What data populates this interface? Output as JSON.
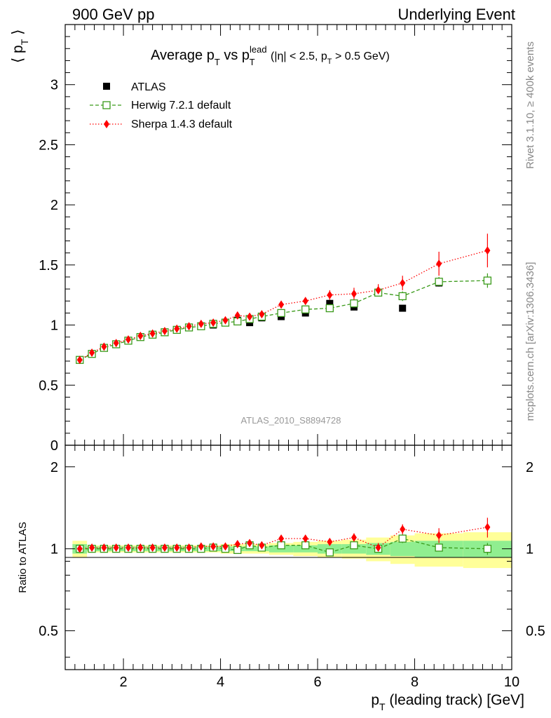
{
  "header": {
    "left": "900 GeV pp",
    "right": "Underlying Event"
  },
  "side_labels": {
    "rivet": "Rivet 3.1.10, ≥ 400k events",
    "mcplots": "mcplots.cern.ch [arXiv:1306.3436]"
  },
  "watermark": "ATLAS_2010_S8894728",
  "chart_data": [
    {
      "type": "scatter",
      "panel": "main",
      "title": "Average p_T vs p_T^lead (|η| < 2.5, p_T > 0.5 GeV)",
      "ylabel": "⟨ p_T ⟩",
      "xlabel": "p_T (leading track) [GeV]",
      "xlim": [
        0.8,
        10.0
      ],
      "ylim": [
        0,
        3.5
      ],
      "xticks": [
        2,
        4,
        6,
        8,
        10
      ],
      "yticks": [
        0,
        0.5,
        1,
        1.5,
        2,
        2.5,
        3
      ],
      "legend_position": "top-left",
      "x": [
        1.1,
        1.35,
        1.6,
        1.85,
        2.1,
        2.35,
        2.6,
        2.85,
        3.1,
        3.35,
        3.6,
        3.85,
        4.1,
        4.35,
        4.6,
        4.85,
        5.25,
        5.75,
        6.25,
        6.75,
        7.25,
        7.75,
        8.5,
        9.5
      ],
      "series": [
        {
          "name": "ATLAS",
          "color": "#000000",
          "marker": "filled-square",
          "values": [
            0.71,
            0.76,
            0.81,
            0.84,
            0.87,
            0.9,
            0.92,
            0.94,
            0.96,
            0.98,
            0.99,
            1.0,
            1.02,
            1.04,
            1.02,
            1.06,
            1.07,
            1.1,
            1.18,
            1.15,
            1.27,
            1.14,
            1.35,
            1.37
          ],
          "errors": [
            0.01,
            0.01,
            0.01,
            0.01,
            0.01,
            0.01,
            0.01,
            0.01,
            0.01,
            0.01,
            0.01,
            0.01,
            0.01,
            0.01,
            0.01,
            0.01,
            0.01,
            0.01,
            0.01,
            0.01,
            0.01,
            0.01,
            0.01,
            0.01
          ]
        },
        {
          "name": "Herwig 7.2.1 default",
          "color": "#3a9a1a",
          "marker": "open-square",
          "line": "dashed",
          "values": [
            0.71,
            0.76,
            0.81,
            0.84,
            0.87,
            0.9,
            0.92,
            0.94,
            0.96,
            0.98,
            0.99,
            1.01,
            1.02,
            1.03,
            1.05,
            1.07,
            1.1,
            1.13,
            1.14,
            1.18,
            1.27,
            1.24,
            1.36,
            1.37
          ],
          "errors": [
            0.01,
            0.01,
            0.01,
            0.01,
            0.01,
            0.01,
            0.01,
            0.01,
            0.01,
            0.01,
            0.01,
            0.01,
            0.01,
            0.01,
            0.01,
            0.01,
            0.01,
            0.02,
            0.02,
            0.03,
            0.03,
            0.04,
            0.04,
            0.06
          ]
        },
        {
          "name": "Sherpa 1.4.3 default",
          "color": "#ff0000",
          "marker": "filled-diamond",
          "line": "dotted",
          "values": [
            0.71,
            0.77,
            0.82,
            0.85,
            0.88,
            0.91,
            0.93,
            0.95,
            0.97,
            0.99,
            1.01,
            1.02,
            1.04,
            1.08,
            1.07,
            1.09,
            1.17,
            1.2,
            1.25,
            1.26,
            1.29,
            1.35,
            1.51,
            1.62
          ],
          "errors": [
            0.01,
            0.01,
            0.01,
            0.01,
            0.01,
            0.01,
            0.01,
            0.01,
            0.01,
            0.01,
            0.01,
            0.01,
            0.01,
            0.01,
            0.01,
            0.02,
            0.02,
            0.03,
            0.04,
            0.05,
            0.05,
            0.06,
            0.1,
            0.14
          ]
        }
      ]
    },
    {
      "type": "scatter",
      "panel": "ratio",
      "ylabel": "Ratio to ATLAS",
      "xlabel": "p_T (leading track) [GeV]",
      "xlim": [
        0.8,
        10.0
      ],
      "ylim": [
        0.36,
        2.4
      ],
      "log_y": true,
      "yticks": [
        0.5,
        1,
        2
      ],
      "x": [
        1.1,
        1.35,
        1.6,
        1.85,
        2.1,
        2.35,
        2.6,
        2.85,
        3.1,
        3.35,
        3.6,
        3.85,
        4.1,
        4.35,
        4.6,
        4.85,
        5.25,
        5.75,
        6.25,
        6.75,
        7.25,
        7.75,
        8.5,
        9.5
      ],
      "bins": [
        [
          0.95,
          1.25
        ],
        [
          1.25,
          1.5
        ],
        [
          1.5,
          1.75
        ],
        [
          1.75,
          2.0
        ],
        [
          2.0,
          2.25
        ],
        [
          2.25,
          2.5
        ],
        [
          2.5,
          2.75
        ],
        [
          2.75,
          3.0
        ],
        [
          3.0,
          3.25
        ],
        [
          3.25,
          3.5
        ],
        [
          3.5,
          3.75
        ],
        [
          3.75,
          4.0
        ],
        [
          4.0,
          4.25
        ],
        [
          4.25,
          4.5
        ],
        [
          4.5,
          4.75
        ],
        [
          4.75,
          5.0
        ],
        [
          5.0,
          5.5
        ],
        [
          5.5,
          6.0
        ],
        [
          6.0,
          6.5
        ],
        [
          6.5,
          7.0
        ],
        [
          7.0,
          7.5
        ],
        [
          7.5,
          8.0
        ],
        [
          8.0,
          9.0
        ],
        [
          9.0,
          10.0
        ]
      ],
      "band_stat": [
        0.04,
        0.02,
        0.02,
        0.02,
        0.02,
        0.02,
        0.02,
        0.02,
        0.02,
        0.02,
        0.02,
        0.02,
        0.02,
        0.02,
        0.02,
        0.02,
        0.03,
        0.03,
        0.04,
        0.04,
        0.05,
        0.06,
        0.07,
        0.07
      ],
      "band_total": [
        0.07,
        0.03,
        0.03,
        0.03,
        0.03,
        0.03,
        0.03,
        0.03,
        0.03,
        0.03,
        0.03,
        0.03,
        0.04,
        0.04,
        0.04,
        0.04,
        0.05,
        0.06,
        0.07,
        0.08,
        0.1,
        0.12,
        0.14,
        0.15
      ],
      "band_stat_color": "#90ee90",
      "band_total_color": "#ffff99",
      "series": [
        {
          "name": "Herwig 7.2.1 default",
          "color": "#3a9a1a",
          "values": [
            1.0,
            1.0,
            1.0,
            1.0,
            1.0,
            1.0,
            1.0,
            1.0,
            1.0,
            1.0,
            1.0,
            1.01,
            1.0,
            0.99,
            1.03,
            1.01,
            1.03,
            1.03,
            0.97,
            1.03,
            1.0,
            1.09,
            1.01,
            1.0
          ],
          "errors": [
            0.02,
            0.01,
            0.01,
            0.01,
            0.01,
            0.01,
            0.01,
            0.01,
            0.01,
            0.01,
            0.01,
            0.01,
            0.01,
            0.01,
            0.01,
            0.01,
            0.02,
            0.02,
            0.02,
            0.03,
            0.03,
            0.04,
            0.03,
            0.05
          ]
        },
        {
          "name": "Sherpa 1.4.3 default",
          "color": "#ff0000",
          "values": [
            1.0,
            1.01,
            1.01,
            1.01,
            1.01,
            1.01,
            1.01,
            1.01,
            1.01,
            1.01,
            1.02,
            1.02,
            1.02,
            1.04,
            1.05,
            1.03,
            1.09,
            1.09,
            1.06,
            1.1,
            1.01,
            1.18,
            1.12,
            1.2
          ],
          "errors": [
            0.02,
            0.01,
            0.01,
            0.01,
            0.01,
            0.01,
            0.01,
            0.01,
            0.01,
            0.01,
            0.01,
            0.01,
            0.01,
            0.01,
            0.02,
            0.02,
            0.02,
            0.03,
            0.03,
            0.04,
            0.04,
            0.05,
            0.07,
            0.1
          ]
        }
      ]
    }
  ]
}
